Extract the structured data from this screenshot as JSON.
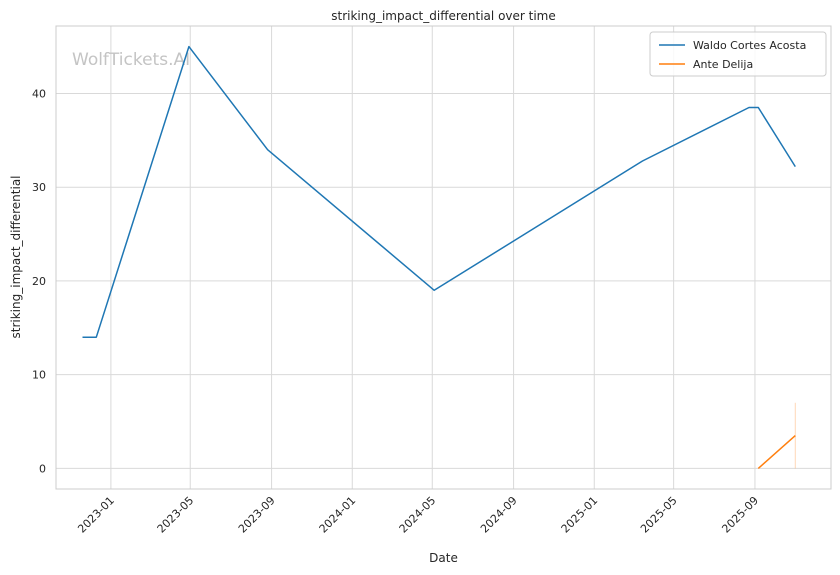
{
  "chart_data": {
    "type": "line",
    "title": "striking_impact_differential over time",
    "xlabel": "Date",
    "ylabel": "striking_impact_differential",
    "watermark": "WolfTickets.AI",
    "xlim": [
      "2022-10-10",
      "2025-12-25"
    ],
    "ylim": [
      -2.2,
      47.2
    ],
    "x_ticks": [
      "2023-01",
      "2023-05",
      "2023-09",
      "2024-01",
      "2024-05",
      "2024-09",
      "2025-01",
      "2025-05",
      "2025-09"
    ],
    "y_ticks": [
      0,
      10,
      20,
      30,
      40
    ],
    "grid": true,
    "legend_position": "top-right",
    "series": [
      {
        "name": "Waldo Cortes Acosta",
        "color": "#1f77b4",
        "points": [
          {
            "x": "2022-11-19",
            "y": 14
          },
          {
            "x": "2022-12-10",
            "y": 14
          },
          {
            "x": "2023-04-29",
            "y": 45
          },
          {
            "x": "2023-08-26",
            "y": 34
          },
          {
            "x": "2024-05-04",
            "y": 19
          },
          {
            "x": "2025-03-15",
            "y": 32.8
          },
          {
            "x": "2025-08-23",
            "y": 38.5
          },
          {
            "x": "2025-09-06",
            "y": 38.5
          },
          {
            "x": "2025-11-01",
            "y": 32.2
          }
        ]
      },
      {
        "name": "Ante Delija",
        "color": "#ff7f0e",
        "points": [
          {
            "x": "2025-09-06",
            "y": 0
          },
          {
            "x": "2025-11-01",
            "y": 3.5
          }
        ],
        "band": {
          "x": "2025-11-01",
          "low": 0,
          "high": 7
        }
      }
    ]
  }
}
